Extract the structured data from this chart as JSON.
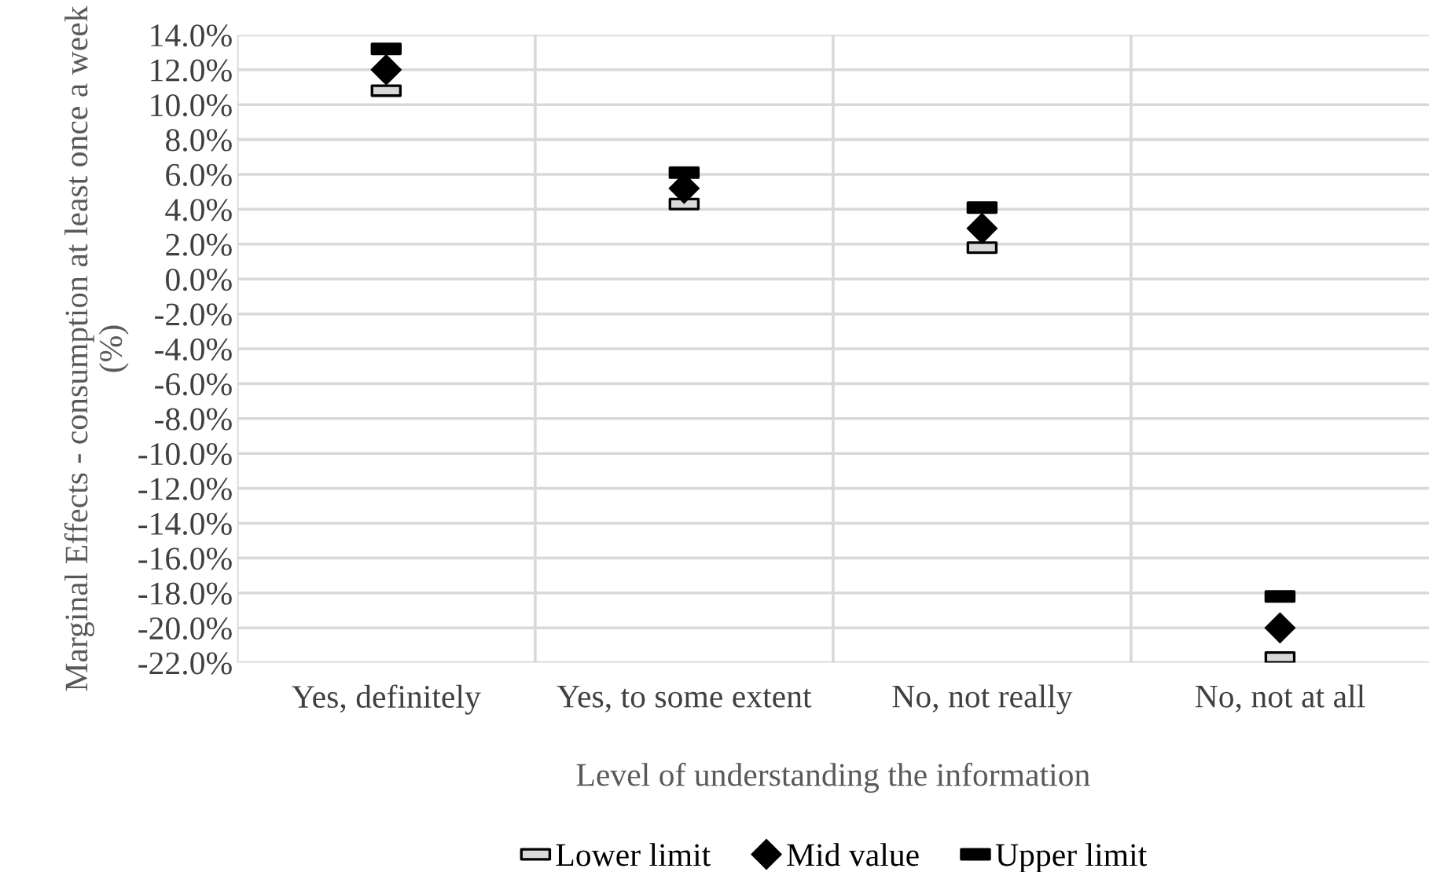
{
  "chart_data": {
    "type": "scatter",
    "xlabel": "Level of understanding the information",
    "ylabel": "Marginal Effects - consumption at least once a week (%)",
    "categories": [
      "Yes, definitely",
      "Yes, to some extent",
      "No, not really",
      "No, not at all"
    ],
    "series": [
      {
        "name": "Lower limit",
        "color": "#d9d9d9",
        "marker": "square",
        "values": [
          10.8,
          4.3,
          1.8,
          -21.7
        ]
      },
      {
        "name": "Mid value",
        "color": "#000000",
        "marker": "diamond",
        "values": [
          12.0,
          5.2,
          2.9,
          -20.0
        ]
      },
      {
        "name": "Upper limit",
        "color": "#000000",
        "marker": "square",
        "values": [
          13.2,
          6.1,
          4.1,
          -18.2
        ]
      }
    ],
    "ylim": [
      -22,
      14
    ],
    "yticks": [
      {
        "value": 14,
        "label": "14.0%"
      },
      {
        "value": 12,
        "label": "12.0%"
      },
      {
        "value": 10,
        "label": "10.0%"
      },
      {
        "value": 8,
        "label": "8.0%"
      },
      {
        "value": 6,
        "label": "6.0%"
      },
      {
        "value": 4,
        "label": "4.0%"
      },
      {
        "value": 2,
        "label": "2.0%"
      },
      {
        "value": 0,
        "label": "0.0%"
      },
      {
        "value": -2,
        "label": "-2.0%"
      },
      {
        "value": -4,
        "label": "-4.0%"
      },
      {
        "value": -6,
        "label": "-6.0%"
      },
      {
        "value": -8,
        "label": "-8.0%"
      },
      {
        "value": -10,
        "label": "-10.0%"
      },
      {
        "value": -12,
        "label": "-12.0%"
      },
      {
        "value": -14,
        "label": "-14.0%"
      },
      {
        "value": -16,
        "label": "-16.0%"
      },
      {
        "value": -18,
        "label": "-18.0%"
      },
      {
        "value": -20,
        "label": "-20.0%"
      },
      {
        "value": -22,
        "label": "-22.0%"
      }
    ],
    "grid": true,
    "legend": "bottom"
  }
}
